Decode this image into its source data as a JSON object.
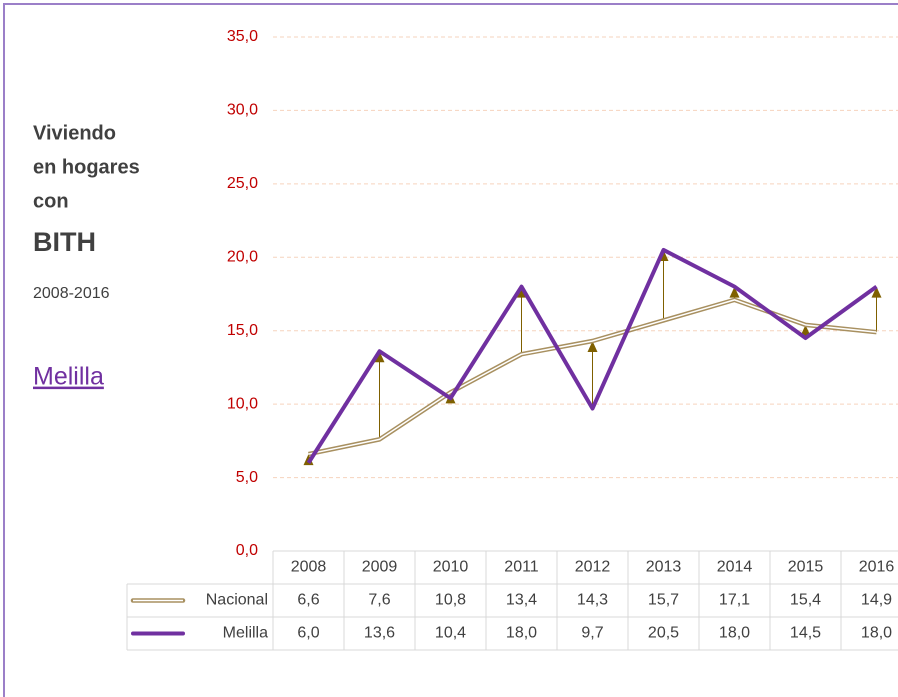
{
  "chart_data": {
    "type": "line",
    "title_lines": [
      "Viviendo",
      "en hogares",
      "con"
    ],
    "subtitle": "BITH",
    "period": "2008-2016",
    "region": "Melilla",
    "categories": [
      "2008",
      "2009",
      "2010",
      "2011",
      "2012",
      "2013",
      "2014",
      "2015",
      "2016"
    ],
    "series": [
      {
        "name": "Nacional",
        "color": "#a89060",
        "values": [
          6.6,
          7.6,
          10.8,
          13.4,
          14.3,
          15.7,
          17.1,
          15.4,
          14.9
        ],
        "value_labels": [
          "6,6",
          "7,6",
          "10,8",
          "13,4",
          "14,3",
          "15,7",
          "17,1",
          "15,4",
          "14,9"
        ]
      },
      {
        "name": "Melilla",
        "color": "#7030a0",
        "values": [
          6.0,
          13.6,
          10.4,
          18.0,
          9.7,
          20.5,
          18.0,
          14.5,
          18.0
        ],
        "value_labels": [
          "6,0",
          "13,6",
          "10,4",
          "18,0",
          "9,7",
          "20,5",
          "18,0",
          "14,5",
          "18,0"
        ]
      }
    ],
    "ylim": [
      0,
      35
    ],
    "yticks": [
      {
        "value": 0,
        "label": "0,0"
      },
      {
        "value": 5,
        "label": "5,0"
      },
      {
        "value": 10,
        "label": "10,0"
      },
      {
        "value": 15,
        "label": "15,0"
      },
      {
        "value": 20,
        "label": "20,0"
      },
      {
        "value": 25,
        "label": "25,0"
      },
      {
        "value": 30,
        "label": "30,0"
      },
      {
        "value": 35,
        "label": "35,0"
      }
    ],
    "grid": true,
    "arrow_color": "#7f6000"
  }
}
